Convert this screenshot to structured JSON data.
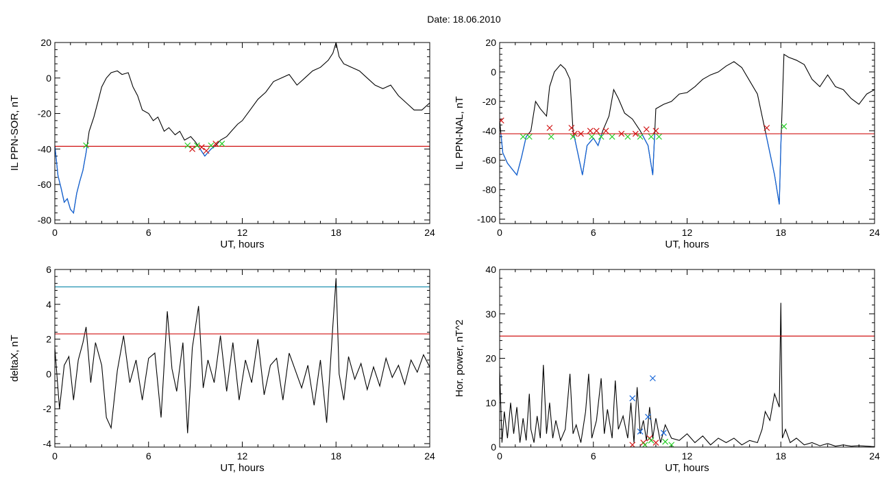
{
  "figure": {
    "title": "Date:  18.06.2010"
  },
  "colors": {
    "trace": "#000000",
    "below_threshold": "#1565d8",
    "threshold": "#d01010",
    "upper_threshold": "#1e90b0",
    "marker_red": "#d01010",
    "marker_green": "#22cc22",
    "marker_blue": "#1565d8"
  },
  "chart_data": [
    {
      "id": "sor",
      "type": "line",
      "title": "",
      "xlabel": "UT, hours",
      "ylabel": "IL PPN-SOR, nT",
      "xlim": [
        0,
        24
      ],
      "ylim": [
        -82,
        20
      ],
      "xticks": [
        0,
        6,
        12,
        18,
        24
      ],
      "yticks": [
        -80,
        -60,
        -40,
        -20,
        0,
        20
      ],
      "threshold": -38.5,
      "series": [
        {
          "x": [
            0,
            0.2,
            0.4,
            0.6,
            0.8,
            1.0,
            1.2,
            1.4,
            1.6,
            1.8,
            2.0,
            2.2,
            2.5,
            2.8,
            3.0,
            3.3,
            3.6,
            4.0,
            4.3,
            4.7,
            5.0,
            5.3,
            5.6,
            6.0,
            6.3,
            6.6,
            7.0,
            7.3,
            7.7,
            8.0,
            8.3,
            8.7,
            9.0,
            9.3,
            9.6,
            10.0,
            10.3,
            10.6,
            11.0,
            11.3,
            11.7,
            12.0,
            12.5,
            13.0,
            13.5,
            14.0,
            14.5,
            15.0,
            15.5,
            16.0,
            16.5,
            17.0,
            17.5,
            17.8,
            18.0,
            18.2,
            18.5,
            19.0,
            19.5,
            20.0,
            20.5,
            21.0,
            21.5,
            22.0,
            22.5,
            23.0,
            23.5,
            24.0
          ],
          "y": [
            -38,
            -55,
            -62,
            -70,
            -68,
            -74,
            -76,
            -65,
            -58,
            -52,
            -42,
            -30,
            -22,
            -12,
            -5,
            0,
            3,
            4,
            2,
            3,
            -5,
            -10,
            -18,
            -20,
            -24,
            -22,
            -30,
            -28,
            -32,
            -30,
            -35,
            -33,
            -36,
            -40,
            -44,
            -40,
            -38,
            -35,
            -33,
            -30,
            -26,
            -24,
            -18,
            -12,
            -8,
            -2,
            0,
            2,
            -4,
            0,
            4,
            6,
            10,
            14,
            20,
            12,
            8,
            6,
            4,
            0,
            -4,
            -6,
            -4,
            -10,
            -14,
            -18,
            -18,
            -14
          ]
        }
      ],
      "markers": [
        {
          "x": 2.0,
          "y": -38,
          "color": "green"
        },
        {
          "x": 8.5,
          "y": -38,
          "color": "green"
        },
        {
          "x": 8.8,
          "y": -40,
          "color": "red"
        },
        {
          "x": 9.1,
          "y": -38,
          "color": "green"
        },
        {
          "x": 9.4,
          "y": -39,
          "color": "red"
        },
        {
          "x": 9.7,
          "y": -41,
          "color": "red"
        },
        {
          "x": 10.0,
          "y": -38,
          "color": "green"
        },
        {
          "x": 10.3,
          "y": -37,
          "color": "red"
        },
        {
          "x": 10.7,
          "y": -37,
          "color": "green"
        }
      ]
    },
    {
      "id": "nal",
      "type": "line",
      "title": "",
      "xlabel": "UT, hours",
      "ylabel": "IL PPN-NAL, nT",
      "xlim": [
        0,
        24
      ],
      "ylim": [
        -103,
        20
      ],
      "xticks": [
        0,
        6,
        12,
        18,
        24
      ],
      "yticks": [
        -100,
        -80,
        -60,
        -40,
        -20,
        0,
        20
      ],
      "threshold": -42,
      "series": [
        {
          "x": [
            0,
            0.2,
            0.5,
            0.8,
            1.1,
            1.4,
            1.7,
            2.0,
            2.3,
            2.6,
            3.0,
            3.2,
            3.5,
            3.9,
            4.2,
            4.5,
            4.7,
            5.0,
            5.3,
            5.6,
            6.0,
            6.3,
            6.6,
            7.0,
            7.3,
            7.6,
            8.0,
            8.5,
            9.0,
            9.5,
            9.8,
            10.0,
            10.5,
            11.0,
            11.5,
            12.0,
            12.5,
            13.0,
            13.5,
            14.0,
            14.5,
            15.0,
            15.5,
            16.0,
            16.5,
            16.8,
            17.0,
            17.3,
            17.6,
            17.9,
            18.0,
            18.2,
            18.5,
            19.0,
            19.5,
            20.0,
            20.5,
            21.0,
            21.5,
            22.0,
            22.5,
            23.0,
            23.5,
            24.0
          ],
          "y": [
            -33,
            -55,
            -62,
            -66,
            -70,
            -58,
            -44,
            -40,
            -20,
            -25,
            -30,
            -10,
            0,
            5,
            2,
            -5,
            -40,
            -55,
            -70,
            -50,
            -45,
            -50,
            -40,
            -30,
            -12,
            -18,
            -28,
            -32,
            -40,
            -50,
            -70,
            -25,
            -22,
            -20,
            -15,
            -14,
            -10,
            -5,
            -2,
            0,
            4,
            7,
            3,
            -6,
            -15,
            -30,
            -40,
            -55,
            -70,
            -90,
            -50,
            12,
            10,
            8,
            5,
            -5,
            -10,
            -2,
            -10,
            -12,
            -18,
            -22,
            -15,
            -12
          ]
        }
      ],
      "markers": [
        {
          "x": 0.1,
          "y": -33,
          "color": "red"
        },
        {
          "x": 1.5,
          "y": -44,
          "color": "green"
        },
        {
          "x": 1.9,
          "y": -44,
          "color": "green"
        },
        {
          "x": 3.2,
          "y": -38,
          "color": "red"
        },
        {
          "x": 3.3,
          "y": -44,
          "color": "green"
        },
        {
          "x": 4.6,
          "y": -38,
          "color": "red"
        },
        {
          "x": 4.8,
          "y": -42,
          "color": "red"
        },
        {
          "x": 4.7,
          "y": -44,
          "color": "green"
        },
        {
          "x": 5.2,
          "y": -42,
          "color": "red"
        },
        {
          "x": 5.8,
          "y": -40,
          "color": "red"
        },
        {
          "x": 5.9,
          "y": -44,
          "color": "green"
        },
        {
          "x": 6.2,
          "y": -40,
          "color": "red"
        },
        {
          "x": 6.5,
          "y": -44,
          "color": "green"
        },
        {
          "x": 6.8,
          "y": -40,
          "color": "red"
        },
        {
          "x": 7.2,
          "y": -44,
          "color": "green"
        },
        {
          "x": 7.8,
          "y": -42,
          "color": "red"
        },
        {
          "x": 8.2,
          "y": -44,
          "color": "green"
        },
        {
          "x": 8.7,
          "y": -42,
          "color": "red"
        },
        {
          "x": 9.0,
          "y": -44,
          "color": "green"
        },
        {
          "x": 9.4,
          "y": -39,
          "color": "red"
        },
        {
          "x": 9.7,
          "y": -44,
          "color": "green"
        },
        {
          "x": 10.0,
          "y": -40,
          "color": "red"
        },
        {
          "x": 10.2,
          "y": -44,
          "color": "green"
        },
        {
          "x": 17.1,
          "y": -38,
          "color": "red"
        },
        {
          "x": 18.2,
          "y": -37,
          "color": "green"
        }
      ]
    },
    {
      "id": "deltax",
      "type": "line",
      "title": "",
      "xlabel": "UT, hours",
      "ylabel": "deltaX, nT",
      "xlim": [
        0,
        24
      ],
      "ylim": [
        -4.2,
        6
      ],
      "xticks": [
        0,
        6,
        12,
        18,
        24
      ],
      "yticks": [
        -4,
        -2,
        0,
        2,
        4,
        6
      ],
      "threshold": 2.3,
      "upper_threshold": 5,
      "series": [
        {
          "x": [
            0,
            0.3,
            0.6,
            0.9,
            1.2,
            1.5,
            1.8,
            2.0,
            2.3,
            2.6,
            3.0,
            3.3,
            3.6,
            4.0,
            4.4,
            4.8,
            5.2,
            5.6,
            6.0,
            6.4,
            6.8,
            7.2,
            7.5,
            7.8,
            8.2,
            8.5,
            8.8,
            9.2,
            9.5,
            9.8,
            10.2,
            10.6,
            11.0,
            11.4,
            11.8,
            12.2,
            12.6,
            13.0,
            13.4,
            13.8,
            14.2,
            14.6,
            15.0,
            15.4,
            15.8,
            16.2,
            16.6,
            17.0,
            17.4,
            17.8,
            18.0,
            18.2,
            18.5,
            18.8,
            19.2,
            19.6,
            20.0,
            20.4,
            20.8,
            21.2,
            21.6,
            22.0,
            22.4,
            22.8,
            23.2,
            23.6,
            24.0
          ],
          "y": [
            1.5,
            -2.0,
            0.5,
            1.0,
            -1.5,
            0.8,
            1.8,
            2.7,
            -0.5,
            1.8,
            0.5,
            -2.5,
            -3.1,
            0.2,
            2.2,
            -0.5,
            0.8,
            -1.5,
            0.9,
            1.2,
            -2.5,
            3.6,
            0.3,
            -1.0,
            1.8,
            -3.4,
            1.5,
            3.9,
            -0.8,
            0.8,
            -0.5,
            2.2,
            -1.0,
            1.8,
            -1.5,
            0.8,
            -0.5,
            2.0,
            -1.2,
            0.5,
            0.9,
            -1.5,
            1.2,
            0.2,
            -0.8,
            0.5,
            -1.8,
            0.8,
            -2.8,
            2.8,
            5.5,
            0.0,
            -1.5,
            1.0,
            -0.3,
            0.6,
            -0.9,
            0.4,
            -0.7,
            0.9,
            -0.2,
            0.5,
            -0.6,
            0.8,
            0.1,
            1.1,
            0.4
          ]
        }
      ]
    },
    {
      "id": "power",
      "type": "line",
      "title": "",
      "xlabel": "UT, hours",
      "ylabel": "Hor. power, nT^2",
      "xlim": [
        0,
        24
      ],
      "ylim": [
        0,
        40
      ],
      "xticks": [
        0,
        6,
        12,
        18,
        24
      ],
      "yticks": [
        0,
        10,
        20,
        30,
        40
      ],
      "threshold": 25,
      "series": [
        {
          "x": [
            0,
            0.15,
            0.3,
            0.5,
            0.7,
            0.9,
            1.1,
            1.3,
            1.5,
            1.7,
            1.9,
            2.0,
            2.2,
            2.4,
            2.6,
            2.8,
            3.0,
            3.2,
            3.4,
            3.6,
            3.9,
            4.2,
            4.5,
            4.7,
            4.9,
            5.2,
            5.5,
            5.7,
            5.9,
            6.2,
            6.5,
            6.7,
            6.9,
            7.2,
            7.4,
            7.6,
            7.9,
            8.2,
            8.4,
            8.6,
            8.8,
            9.0,
            9.2,
            9.4,
            9.6,
            9.8,
            10.0,
            10.3,
            10.6,
            11.0,
            11.5,
            12.0,
            12.5,
            13.0,
            13.5,
            14.0,
            14.5,
            15.0,
            15.5,
            16.0,
            16.5,
            16.8,
            17.0,
            17.3,
            17.6,
            17.9,
            18.0,
            18.1,
            18.3,
            18.6,
            19.0,
            19.5,
            20.0,
            20.5,
            21.0,
            21.5,
            22.0,
            22.5,
            23.0,
            23.5,
            24.0
          ],
          "y": [
            17.5,
            1.0,
            8.0,
            2.0,
            10.0,
            3.0,
            9.0,
            1.0,
            6.5,
            1.5,
            12.0,
            4.0,
            1.0,
            7.0,
            2.0,
            18.5,
            3.0,
            10.0,
            2.0,
            6.0,
            1.5,
            4.0,
            16.5,
            3.0,
            5.0,
            1.0,
            8.0,
            16.5,
            2.0,
            6.0,
            15.5,
            3.0,
            8.5,
            2.0,
            15.0,
            4.0,
            7.0,
            2.0,
            10.0,
            1.0,
            13.5,
            3.0,
            6.0,
            1.5,
            9.0,
            2.0,
            6.5,
            1.0,
            5.0,
            2.0,
            1.5,
            3.0,
            1.0,
            2.5,
            0.5,
            2.0,
            1.0,
            2.0,
            0.5,
            1.5,
            1.0,
            4.0,
            8.0,
            6.0,
            12.0,
            9.0,
            32.5,
            2.0,
            4.0,
            1.0,
            2.0,
            0.5,
            1.0,
            0.3,
            0.8,
            0.2,
            0.5,
            0.2,
            0.3,
            0.2,
            0.1
          ]
        }
      ],
      "markers": [
        {
          "x": 8.5,
          "y": 11.0,
          "color": "blue"
        },
        {
          "x": 9.0,
          "y": 3.5,
          "color": "blue"
        },
        {
          "x": 9.5,
          "y": 6.8,
          "color": "blue"
        },
        {
          "x": 9.8,
          "y": 15.5,
          "color": "blue"
        },
        {
          "x": 10.5,
          "y": 3.2,
          "color": "blue"
        },
        {
          "x": 8.5,
          "y": 0.5,
          "color": "red"
        },
        {
          "x": 9.2,
          "y": 1.0,
          "color": "red"
        },
        {
          "x": 9.6,
          "y": 2.0,
          "color": "red"
        },
        {
          "x": 10.0,
          "y": 1.0,
          "color": "red"
        },
        {
          "x": 9.3,
          "y": 0.5,
          "color": "green"
        },
        {
          "x": 9.7,
          "y": 1.5,
          "color": "green"
        },
        {
          "x": 10.6,
          "y": 1.2,
          "color": "green"
        },
        {
          "x": 11.0,
          "y": 0.5,
          "color": "green"
        }
      ]
    }
  ]
}
